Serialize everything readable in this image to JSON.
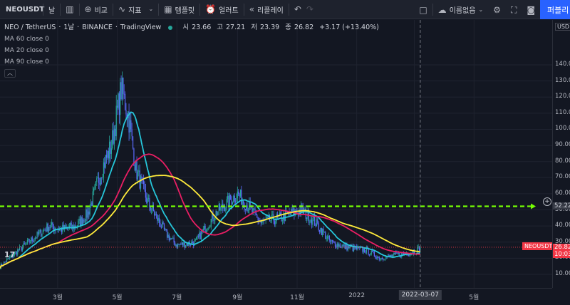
{
  "toolbar": {
    "symbol": "NEOUSDT",
    "interval": "날",
    "compare_label": "비교",
    "indicators_label": "지표",
    "templates_label": "템플릿",
    "alert_label": "얼러트",
    "replay_label": "리플레이",
    "unnamed_label": "이름없음",
    "publish_label": "퍼블리"
  },
  "legend": {
    "pair": "NEO / TetherUS",
    "interval": "1날",
    "exchange": "BINANCE",
    "source": "TradingView",
    "open_label": "시",
    "open": "23.66",
    "high_label": "고",
    "high": "27.21",
    "low_label": "저",
    "low": "23.39",
    "close_label": "종",
    "close": "26.82",
    "change": "+3.17 (+13.40%)",
    "ma": [
      "MA 60 close 0",
      "MA 20 close 0",
      "MA 90 close 0"
    ]
  },
  "price_axis": {
    "currency": "USD",
    "ticks": [
      "140.00",
      "130.00",
      "120.00",
      "110.00",
      "100.00",
      "90.00",
      "80.00",
      "70.00",
      "60.00",
      "50.00",
      "40.00",
      "30.00",
      "20.00",
      "10.00"
    ],
    "hline_value": "52.22",
    "last_price": "26.82",
    "countdown": "10:03"
  },
  "time_axis": {
    "labels": [
      "3월",
      "5월",
      "7월",
      "9월",
      "11월",
      "2022",
      "5월"
    ],
    "cursor_date": "2022-03-07"
  },
  "chart_overlay": {
    "symbol_tag": "NEOUSDT",
    "logo": "17"
  },
  "chart_data": {
    "type": "candlestick",
    "symbol": "NEO / TetherUS",
    "ylim": [
      5,
      148
    ],
    "horizontal_line": 52.22,
    "close_series": [
      {
        "x": "2021-01-01",
        "y": 15
      },
      {
        "x": "2021-01-20",
        "y": 25
      },
      {
        "x": "2021-02-10",
        "y": 35
      },
      {
        "x": "2021-02-20",
        "y": 40
      },
      {
        "x": "2021-03-05",
        "y": 38
      },
      {
        "x": "2021-03-20",
        "y": 40
      },
      {
        "x": "2021-04-01",
        "y": 48
      },
      {
        "x": "2021-04-15",
        "y": 75
      },
      {
        "x": "2021-04-25",
        "y": 90
      },
      {
        "x": "2021-05-05",
        "y": 125
      },
      {
        "x": "2021-05-12",
        "y": 110
      },
      {
        "x": "2021-05-20",
        "y": 75
      },
      {
        "x": "2021-06-01",
        "y": 55
      },
      {
        "x": "2021-06-20",
        "y": 35
      },
      {
        "x": "2021-07-01",
        "y": 28
      },
      {
        "x": "2021-07-20",
        "y": 30
      },
      {
        "x": "2021-08-10",
        "y": 48
      },
      {
        "x": "2021-09-01",
        "y": 60
      },
      {
        "x": "2021-09-08",
        "y": 55
      },
      {
        "x": "2021-09-25",
        "y": 42
      },
      {
        "x": "2021-10-15",
        "y": 45
      },
      {
        "x": "2021-11-05",
        "y": 50
      },
      {
        "x": "2021-11-20",
        "y": 42
      },
      {
        "x": "2021-12-05",
        "y": 30
      },
      {
        "x": "2021-12-20",
        "y": 27
      },
      {
        "x": "2022-01-10",
        "y": 25
      },
      {
        "x": "2022-01-25",
        "y": 20
      },
      {
        "x": "2022-02-10",
        "y": 22
      },
      {
        "x": "2022-03-01",
        "y": 24
      },
      {
        "x": "2022-03-07",
        "y": 26.82
      }
    ],
    "moving_averages": [
      {
        "name": "MA 20",
        "color": "#26c6da"
      },
      {
        "name": "MA 60",
        "color": "#e91e63"
      },
      {
        "name": "MA 90",
        "color": "#ffeb3b"
      }
    ],
    "colors": {
      "up": "#26a69a",
      "down": "#5b6cff",
      "hline": "#76ff03",
      "last_price": "#f23645"
    }
  }
}
